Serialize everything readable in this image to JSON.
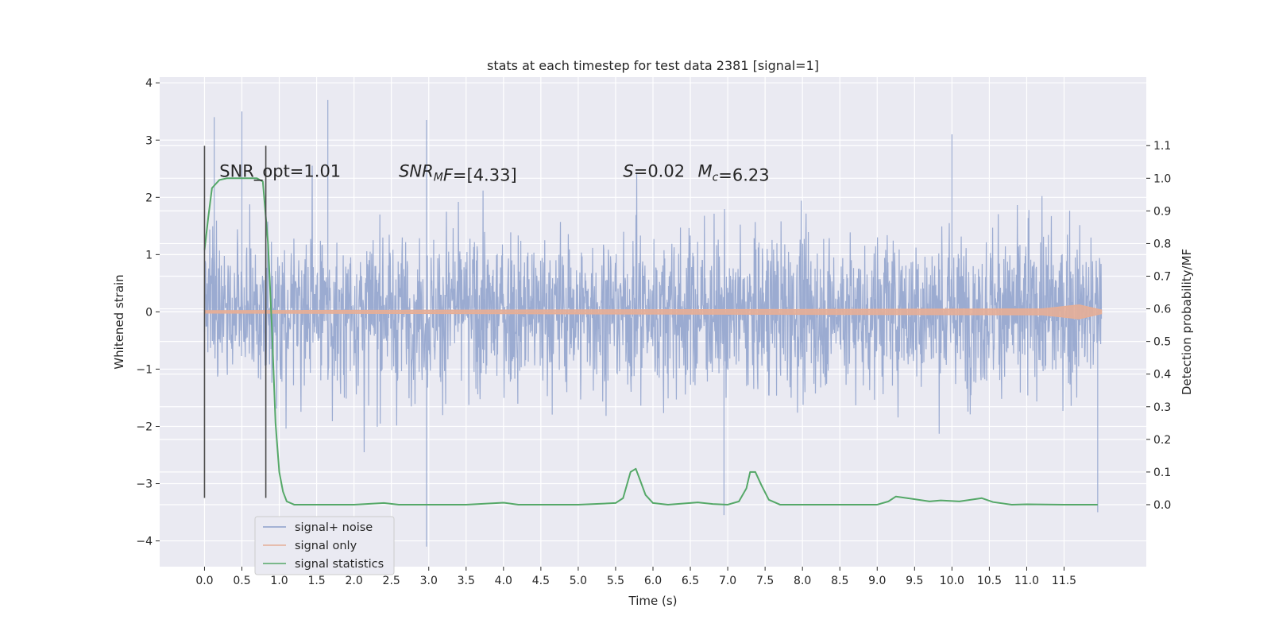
{
  "chart_data": {
    "type": "line",
    "title": "stats at each timestep for test data 2381 [signal=1]",
    "xlabel": "Time (s)",
    "ylabel_left": "Whitened strain",
    "ylabel_right": "Detection probability/MF",
    "xlim": [
      -0.6,
      12.6
    ],
    "ylim_left": [
      -4.45,
      4.1
    ],
    "ylim_right": [
      -0.19,
      1.31
    ],
    "x_ticks": [
      0.0,
      0.5,
      1.0,
      1.5,
      2.0,
      2.5,
      3.0,
      3.5,
      4.0,
      4.5,
      5.0,
      5.5,
      6.0,
      6.5,
      7.0,
      7.5,
      8.0,
      8.5,
      9.0,
      9.5,
      10.0,
      10.5,
      11.0,
      11.5
    ],
    "x_tick_labels": [
      "0.0",
      "0.5",
      "1.0",
      "1.5",
      "2.0",
      "2.5",
      "3.0",
      "3.5",
      "4.0",
      "4.5",
      "5.0",
      "5.5",
      "6.0",
      "6.5",
      "7.0",
      "7.5",
      "8.0",
      "8.5",
      "9.0",
      "9.5",
      "10.0",
      "10.5",
      "11.0",
      "11.5"
    ],
    "y_left_ticks": [
      -4,
      -3,
      -2,
      -1,
      0,
      1,
      2,
      3,
      4
    ],
    "y_left_tick_labels": [
      "−4",
      "−3",
      "−2",
      "−1",
      "0",
      "1",
      "2",
      "3",
      "4"
    ],
    "y_right_ticks": [
      0.0,
      0.1,
      0.2,
      0.3,
      0.4,
      0.5,
      0.6,
      0.7,
      0.8,
      0.9,
      1.0,
      1.1
    ],
    "y_right_tick_labels": [
      "0.0",
      "0.1",
      "0.2",
      "0.3",
      "0.4",
      "0.5",
      "0.6",
      "0.7",
      "0.8",
      "0.9",
      "1.0",
      "1.1"
    ],
    "grid": true,
    "legend_position": "lower-left",
    "series": [
      {
        "name": "signal+ noise",
        "axis": "left",
        "color": "#8da0cb",
        "description_range": [
          -4.1,
          3.7
        ],
        "x_range": [
          0.0,
          12.0
        ],
        "notable_peaks": [
          [
            0.13,
            3.4
          ],
          [
            0.5,
            3.5
          ],
          [
            1.65,
            3.7
          ],
          [
            2.97,
            3.35
          ],
          [
            10.0,
            3.1
          ],
          [
            2.97,
            -4.1
          ],
          [
            11.95,
            -3.5
          ],
          [
            6.95,
            -3.55
          ]
        ]
      },
      {
        "name": "signal only",
        "axis": "left",
        "color": "#e5ae97",
        "x": [
          0.0,
          11.2,
          11.7,
          12.0
        ],
        "y_envelope": [
          0.02,
          0.05,
          0.12,
          0.03
        ]
      },
      {
        "name": "signal statistics",
        "axis": "right",
        "color": "#55a868",
        "x": [
          0.0,
          0.05,
          0.1,
          0.2,
          0.3,
          0.5,
          0.7,
          0.78,
          0.85,
          0.9,
          0.95,
          1.0,
          1.05,
          1.1,
          1.2,
          1.5,
          2.0,
          2.4,
          2.6,
          3.0,
          3.5,
          4.0,
          4.2,
          5.0,
          5.5,
          5.6,
          5.7,
          5.77,
          5.82,
          5.9,
          6.0,
          6.2,
          6.6,
          6.8,
          7.0,
          7.15,
          7.25,
          7.3,
          7.37,
          7.45,
          7.55,
          7.7,
          8.0,
          8.5,
          9.0,
          9.15,
          9.25,
          9.4,
          9.7,
          9.85,
          10.1,
          10.4,
          10.55,
          10.8,
          11.0,
          11.5,
          11.95
        ],
        "y": [
          0.78,
          0.88,
          0.97,
          0.995,
          1.0,
          1.0,
          1.0,
          0.99,
          0.8,
          0.55,
          0.25,
          0.1,
          0.04,
          0.01,
          0.0,
          0.0,
          0.0,
          0.005,
          0.0,
          0.0,
          0.0,
          0.006,
          0.0,
          0.0,
          0.005,
          0.02,
          0.1,
          0.11,
          0.08,
          0.03,
          0.005,
          0.0,
          0.007,
          0.002,
          0.0,
          0.01,
          0.05,
          0.1,
          0.1,
          0.06,
          0.015,
          0.0,
          0.0,
          0.0,
          0.0,
          0.01,
          0.025,
          0.02,
          0.01,
          0.013,
          0.01,
          0.02,
          0.008,
          0.0,
          0.001,
          0.0,
          0.0
        ]
      }
    ],
    "vertical_lines": [
      0.0,
      0.82
    ],
    "annotations": [
      {
        "prefix": "SNR_opt=",
        "value": "1.01",
        "x": 0.2,
        "y": 1.0
      },
      {
        "prefix": "SNR",
        "sub": "M",
        "suffix": "F=",
        "value": "[4.33]",
        "x": 2.6,
        "y": 1.0
      },
      {
        "prefix": "S",
        "suffix": "=",
        "value": "0.02",
        "x": 5.6,
        "y": 1.0
      },
      {
        "prefix": "M",
        "sub": "c",
        "suffix": "=",
        "value": "6.23",
        "x": 6.6,
        "y": 1.0
      }
    ]
  }
}
